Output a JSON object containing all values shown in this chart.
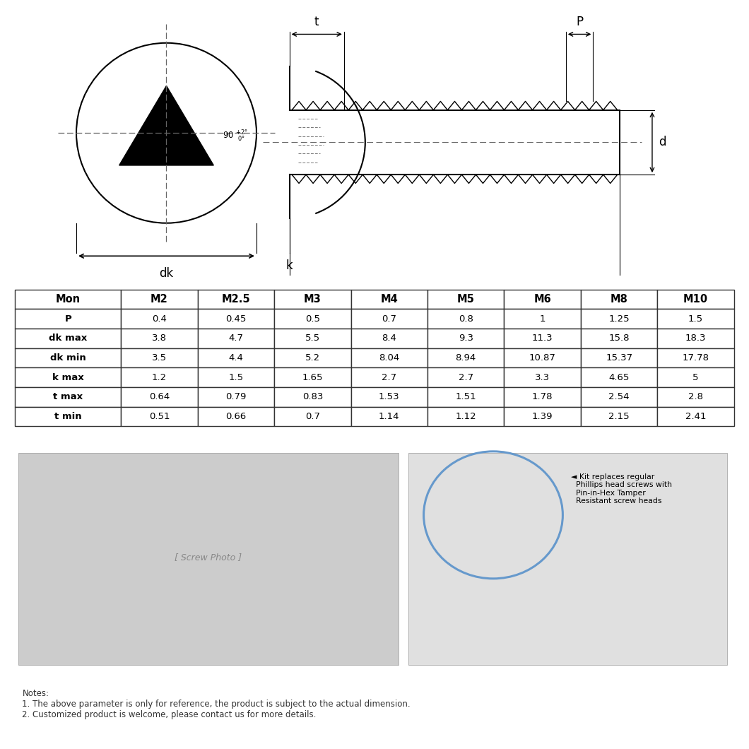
{
  "table_headers": [
    "Mon",
    "M2",
    "M2.5",
    "M3",
    "M4",
    "M5",
    "M6",
    "M8",
    "M10"
  ],
  "table_rows": [
    [
      "P",
      "0.4",
      "0.45",
      "0.5",
      "0.7",
      "0.8",
      "1",
      "1.25",
      "1.5"
    ],
    [
      "dk max",
      "3.8",
      "4.7",
      "5.5",
      "8.4",
      "9.3",
      "11.3",
      "15.8",
      "18.3"
    ],
    [
      "dk min",
      "3.5",
      "4.4",
      "5.2",
      "8.04",
      "8.94",
      "10.87",
      "15.37",
      "17.78"
    ],
    [
      "k max",
      "1.2",
      "1.5",
      "1.65",
      "2.7",
      "2.7",
      "3.3",
      "4.65",
      "5"
    ],
    [
      "t max",
      "0.64",
      "0.79",
      "0.83",
      "1.53",
      "1.51",
      "1.78",
      "2.54",
      "2.8"
    ],
    [
      "t min",
      "0.51",
      "0.66",
      "0.7",
      "1.14",
      "1.12",
      "1.39",
      "2.15",
      "2.41"
    ]
  ],
  "notes": [
    "Notes:",
    "1. The above parameter is only for reference, the product is subject to the actual dimension.",
    "2. Customized product is welcome, please contact us for more details."
  ],
  "bg_color": "#ffffff",
  "border_color": "#333333",
  "text_color": "#222222",
  "photo_left_color": "#cccccc",
  "photo_right_color": "#e0e0e0",
  "ellipse_color": "#6699cc"
}
